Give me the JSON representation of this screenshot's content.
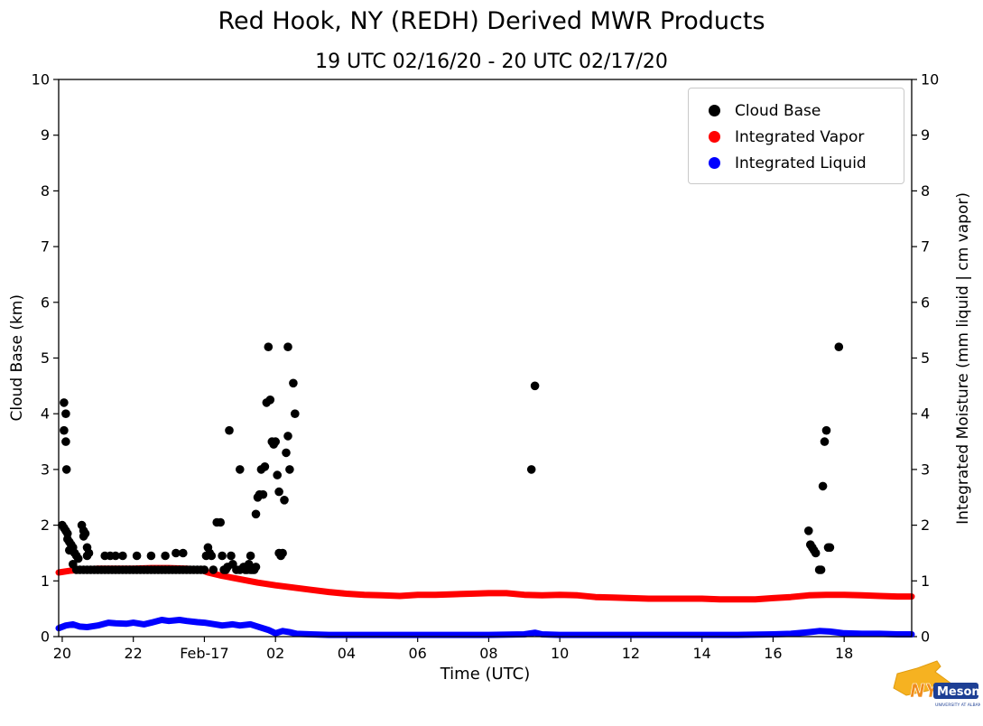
{
  "header": {
    "title": "Red Hook, NY (REDH) Derived MWR Products",
    "subtitle": "19 UTC 02/16/20 - 20 UTC 02/17/20"
  },
  "axes": {
    "xlabel": "Time (UTC)",
    "ylabel_left": "Cloud Base (km)",
    "ylabel_right": "Integrated Moisture (mm liquid | cm vapor)"
  },
  "legend": {
    "items": [
      {
        "label": "Cloud Base",
        "color": "#000000"
      },
      {
        "label": "Integrated Vapor",
        "color": "#ff0000"
      },
      {
        "label": "Integrated Liquid",
        "color": "#0000ff"
      }
    ]
  },
  "logo": {
    "nys": "NYS",
    "mesonet": "Mesonet",
    "tagline": "UNIVERSITY AT ALBANY",
    "gold": "#f6b221",
    "navy": "#1d3f94"
  },
  "chart_data": {
    "type": "scatter_line",
    "title": "Red Hook, NY (REDH) Derived MWR Products",
    "subtitle": "19 UTC 02/16/20 - 20 UTC 02/17/20",
    "xlabel": "Time (UTC)",
    "ylabel_left": "Cloud Base (km)",
    "ylabel_right": "Integrated Moisture (mm liquid | cm vapor)",
    "x_unit": "hours since 02/16 00:00 UTC",
    "xlim": [
      19.9,
      43.9
    ],
    "ylim": [
      0,
      10
    ],
    "grid": false,
    "legend_position": "upper right",
    "x_ticks": [
      {
        "value": 20,
        "label": "20"
      },
      {
        "value": 22,
        "label": "22"
      },
      {
        "value": 24,
        "label": "Feb-17"
      },
      {
        "value": 26,
        "label": "02"
      },
      {
        "value": 28,
        "label": "04"
      },
      {
        "value": 30,
        "label": "06"
      },
      {
        "value": 32,
        "label": "08"
      },
      {
        "value": 34,
        "label": "10"
      },
      {
        "value": 36,
        "label": "12"
      },
      {
        "value": 38,
        "label": "14"
      },
      {
        "value": 40,
        "label": "16"
      },
      {
        "value": 42,
        "label": "18"
      }
    ],
    "y_ticks": [
      0,
      1,
      2,
      3,
      4,
      5,
      6,
      7,
      8,
      9,
      10
    ],
    "series": [
      {
        "name": "Integrated Vapor",
        "kind": "line",
        "color": "#ff0000",
        "width": 7,
        "points": [
          [
            19.9,
            1.15
          ],
          [
            20.2,
            1.18
          ],
          [
            20.5,
            1.2
          ],
          [
            21,
            1.22
          ],
          [
            21.5,
            1.22
          ],
          [
            22,
            1.22
          ],
          [
            22.5,
            1.23
          ],
          [
            23,
            1.23
          ],
          [
            23.5,
            1.22
          ],
          [
            23.9,
            1.2
          ],
          [
            24.1,
            1.15
          ],
          [
            24.5,
            1.09
          ],
          [
            25,
            1.03
          ],
          [
            25.5,
            0.97
          ],
          [
            26,
            0.92
          ],
          [
            26.5,
            0.88
          ],
          [
            27,
            0.84
          ],
          [
            27.5,
            0.8
          ],
          [
            28,
            0.77
          ],
          [
            28.5,
            0.75
          ],
          [
            29,
            0.74
          ],
          [
            29.5,
            0.73
          ],
          [
            30,
            0.75
          ],
          [
            30.5,
            0.75
          ],
          [
            31,
            0.76
          ],
          [
            31.5,
            0.77
          ],
          [
            32,
            0.78
          ],
          [
            32.5,
            0.78
          ],
          [
            33,
            0.75
          ],
          [
            33.5,
            0.74
          ],
          [
            34,
            0.75
          ],
          [
            34.5,
            0.74
          ],
          [
            35,
            0.71
          ],
          [
            35.5,
            0.7
          ],
          [
            36,
            0.69
          ],
          [
            36.5,
            0.68
          ],
          [
            37,
            0.68
          ],
          [
            37.5,
            0.68
          ],
          [
            38,
            0.68
          ],
          [
            38.5,
            0.67
          ],
          [
            39,
            0.67
          ],
          [
            39.5,
            0.67
          ],
          [
            40,
            0.69
          ],
          [
            40.5,
            0.71
          ],
          [
            41,
            0.74
          ],
          [
            41.5,
            0.75
          ],
          [
            42,
            0.75
          ],
          [
            42.5,
            0.74
          ],
          [
            43,
            0.73
          ],
          [
            43.5,
            0.72
          ],
          [
            43.9,
            0.72
          ]
        ]
      },
      {
        "name": "Cloud Base",
        "kind": "scatter",
        "color": "#000000",
        "marker_size": 4.8,
        "points": [
          [
            20.0,
            2.0
          ],
          [
            20.05,
            4.2
          ],
          [
            20.05,
            3.7
          ],
          [
            20.05,
            1.95
          ],
          [
            20.1,
            4.0
          ],
          [
            20.1,
            3.5
          ],
          [
            20.1,
            1.9
          ],
          [
            20.12,
            3.0
          ],
          [
            20.15,
            1.85
          ],
          [
            20.15,
            1.75
          ],
          [
            20.2,
            1.7
          ],
          [
            20.2,
            1.55
          ],
          [
            20.25,
            1.65
          ],
          [
            20.3,
            1.6
          ],
          [
            20.3,
            1.3
          ],
          [
            20.35,
            1.5
          ],
          [
            20.4,
            1.45
          ],
          [
            20.4,
            1.2
          ],
          [
            20.45,
            1.4
          ],
          [
            20.5,
            1.2
          ],
          [
            20.55,
            2.0
          ],
          [
            20.6,
            1.9
          ],
          [
            20.6,
            1.8
          ],
          [
            20.6,
            1.2
          ],
          [
            20.65,
            1.85
          ],
          [
            20.7,
            1.6
          ],
          [
            20.7,
            1.45
          ],
          [
            20.7,
            1.2
          ],
          [
            20.75,
            1.5
          ],
          [
            20.8,
            1.2
          ],
          [
            20.9,
            1.2
          ],
          [
            21.0,
            1.2
          ],
          [
            21.1,
            1.2
          ],
          [
            21.2,
            1.45
          ],
          [
            21.2,
            1.2
          ],
          [
            21.3,
            1.2
          ],
          [
            21.35,
            1.45
          ],
          [
            21.4,
            1.2
          ],
          [
            21.5,
            1.45
          ],
          [
            21.5,
            1.2
          ],
          [
            21.6,
            1.2
          ],
          [
            21.7,
            1.45
          ],
          [
            21.7,
            1.2
          ],
          [
            21.8,
            1.2
          ],
          [
            21.9,
            1.2
          ],
          [
            22.0,
            1.2
          ],
          [
            22.1,
            1.45
          ],
          [
            22.1,
            1.2
          ],
          [
            22.2,
            1.2
          ],
          [
            22.3,
            1.2
          ],
          [
            22.4,
            1.2
          ],
          [
            22.5,
            1.45
          ],
          [
            22.5,
            1.2
          ],
          [
            22.6,
            1.2
          ],
          [
            22.7,
            1.2
          ],
          [
            22.8,
            1.2
          ],
          [
            22.9,
            1.45
          ],
          [
            22.9,
            1.2
          ],
          [
            23.0,
            1.2
          ],
          [
            23.1,
            1.2
          ],
          [
            23.2,
            1.5
          ],
          [
            23.2,
            1.2
          ],
          [
            23.3,
            1.2
          ],
          [
            23.4,
            1.5
          ],
          [
            23.4,
            1.2
          ],
          [
            23.5,
            1.2
          ],
          [
            23.6,
            1.2
          ],
          [
            23.7,
            1.2
          ],
          [
            23.8,
            1.2
          ],
          [
            23.9,
            1.2
          ],
          [
            24.0,
            1.2
          ],
          [
            24.05,
            1.45
          ],
          [
            24.1,
            1.6
          ],
          [
            24.15,
            1.5
          ],
          [
            24.2,
            1.45
          ],
          [
            24.25,
            1.2
          ],
          [
            24.35,
            2.05
          ],
          [
            24.45,
            2.05
          ],
          [
            24.5,
            1.45
          ],
          [
            24.55,
            1.2
          ],
          [
            24.6,
            1.2
          ],
          [
            24.65,
            1.25
          ],
          [
            24.7,
            3.7
          ],
          [
            24.75,
            1.45
          ],
          [
            24.8,
            1.3
          ],
          [
            24.9,
            1.2
          ],
          [
            25.0,
            3.0
          ],
          [
            25.0,
            1.2
          ],
          [
            25.1,
            1.25
          ],
          [
            25.15,
            1.2
          ],
          [
            25.2,
            1.2
          ],
          [
            25.25,
            1.3
          ],
          [
            25.3,
            1.45
          ],
          [
            25.3,
            1.2
          ],
          [
            25.35,
            1.2
          ],
          [
            25.4,
            1.2
          ],
          [
            25.45,
            2.2
          ],
          [
            25.45,
            1.25
          ],
          [
            25.5,
            2.5
          ],
          [
            25.55,
            2.55
          ],
          [
            25.6,
            3.0
          ],
          [
            25.65,
            2.55
          ],
          [
            25.7,
            3.05
          ],
          [
            25.75,
            4.2
          ],
          [
            25.8,
            5.2
          ],
          [
            25.85,
            4.25
          ],
          [
            25.9,
            3.5
          ],
          [
            25.95,
            3.45
          ],
          [
            26.0,
            3.5
          ],
          [
            26.05,
            2.9
          ],
          [
            26.1,
            2.6
          ],
          [
            26.1,
            1.5
          ],
          [
            26.15,
            1.45
          ],
          [
            26.2,
            1.5
          ],
          [
            26.25,
            2.45
          ],
          [
            26.3,
            3.3
          ],
          [
            26.35,
            5.2
          ],
          [
            26.35,
            3.6
          ],
          [
            26.4,
            3.0
          ],
          [
            26.5,
            4.55
          ],
          [
            26.55,
            4.0
          ],
          [
            33.2,
            3.0
          ],
          [
            33.3,
            4.5
          ],
          [
            41.0,
            1.9
          ],
          [
            41.05,
            1.65
          ],
          [
            41.1,
            1.6
          ],
          [
            41.15,
            1.55
          ],
          [
            41.2,
            1.5
          ],
          [
            41.3,
            1.2
          ],
          [
            41.35,
            1.2
          ],
          [
            41.4,
            2.7
          ],
          [
            41.45,
            3.5
          ],
          [
            41.5,
            3.7
          ],
          [
            41.55,
            1.6
          ],
          [
            41.6,
            1.6
          ],
          [
            41.85,
            5.2
          ]
        ]
      },
      {
        "name": "Integrated Liquid",
        "kind": "line",
        "color": "#0000ff",
        "width": 7,
        "points": [
          [
            19.9,
            0.15
          ],
          [
            20.1,
            0.2
          ],
          [
            20.3,
            0.22
          ],
          [
            20.5,
            0.18
          ],
          [
            20.7,
            0.17
          ],
          [
            21,
            0.2
          ],
          [
            21.3,
            0.25
          ],
          [
            21.5,
            0.24
          ],
          [
            21.8,
            0.23
          ],
          [
            22,
            0.25
          ],
          [
            22.3,
            0.22
          ],
          [
            22.5,
            0.25
          ],
          [
            22.8,
            0.3
          ],
          [
            23,
            0.28
          ],
          [
            23.3,
            0.3
          ],
          [
            23.5,
            0.28
          ],
          [
            23.8,
            0.26
          ],
          [
            24,
            0.25
          ],
          [
            24.3,
            0.22
          ],
          [
            24.5,
            0.2
          ],
          [
            24.8,
            0.22
          ],
          [
            25,
            0.2
          ],
          [
            25.3,
            0.22
          ],
          [
            25.5,
            0.18
          ],
          [
            25.8,
            0.12
          ],
          [
            26,
            0.06
          ],
          [
            26.2,
            0.1
          ],
          [
            26.4,
            0.08
          ],
          [
            26.6,
            0.05
          ],
          [
            27,
            0.04
          ],
          [
            27.5,
            0.03
          ],
          [
            28,
            0.03
          ],
          [
            29,
            0.03
          ],
          [
            30,
            0.03
          ],
          [
            31,
            0.03
          ],
          [
            32,
            0.03
          ],
          [
            33,
            0.04
          ],
          [
            33.3,
            0.07
          ],
          [
            33.5,
            0.04
          ],
          [
            34,
            0.03
          ],
          [
            35,
            0.03
          ],
          [
            36,
            0.03
          ],
          [
            37,
            0.03
          ],
          [
            38,
            0.03
          ],
          [
            39,
            0.03
          ],
          [
            40,
            0.04
          ],
          [
            40.5,
            0.05
          ],
          [
            41,
            0.08
          ],
          [
            41.3,
            0.1
          ],
          [
            41.6,
            0.09
          ],
          [
            42,
            0.06
          ],
          [
            42.5,
            0.05
          ],
          [
            43,
            0.05
          ],
          [
            43.5,
            0.04
          ],
          [
            43.9,
            0.04
          ]
        ]
      }
    ]
  }
}
